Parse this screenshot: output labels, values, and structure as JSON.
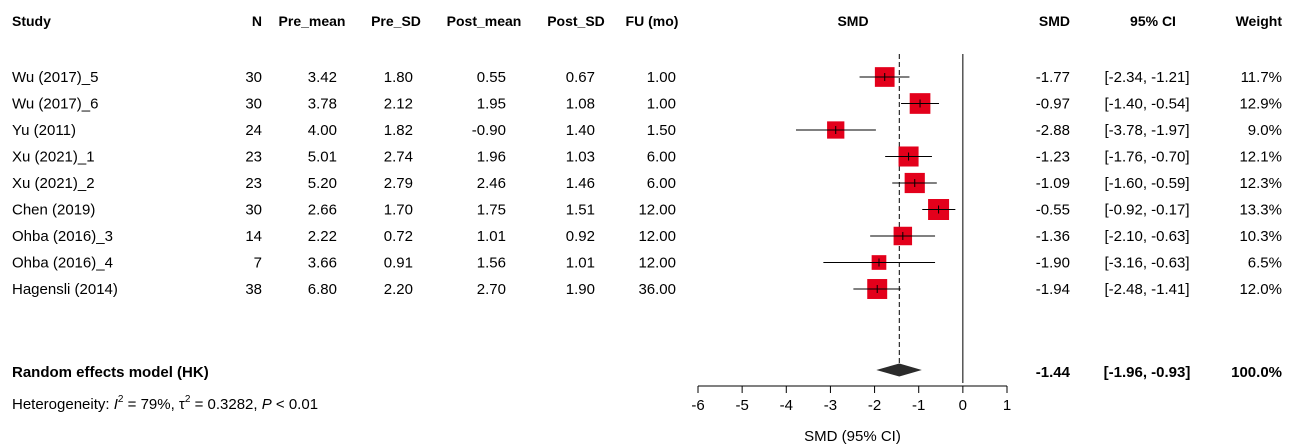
{
  "columns": {
    "study": "Study",
    "n": "N",
    "pre_mean": "Pre_mean",
    "pre_sd": "Pre_SD",
    "post_mean": "Post_mean",
    "post_sd": "Post_SD",
    "fu": "FU (mo)",
    "plot": "SMD",
    "smd": "SMD",
    "ci": "95% CI",
    "weight": "Weight"
  },
  "studies": [
    {
      "study": "Wu (2017)_5",
      "n": "30",
      "pre_mean": "3.42",
      "pre_sd": "1.80",
      "post_mean": "0.55",
      "post_sd": "0.67",
      "fu": "1.00",
      "smd_text": "-1.77",
      "ci_text": "[-2.34, -1.21]",
      "weight": "11.7%"
    },
    {
      "study": "Wu (2017)_6",
      "n": "30",
      "pre_mean": "3.78",
      "pre_sd": "2.12",
      "post_mean": "1.95",
      "post_sd": "1.08",
      "fu": "1.00",
      "smd_text": "-0.97",
      "ci_text": "[-1.40, -0.54]",
      "weight": "12.9%"
    },
    {
      "study": "Yu (2011)",
      "n": "24",
      "pre_mean": "4.00",
      "pre_sd": "1.82",
      "post_mean": "-0.90",
      "post_sd": "1.40",
      "fu": "1.50",
      "smd_text": "-2.88",
      "ci_text": "[-3.78, -1.97]",
      "weight": "9.0%"
    },
    {
      "study": "Xu (2021)_1",
      "n": "23",
      "pre_mean": "5.01",
      "pre_sd": "2.74",
      "post_mean": "1.96",
      "post_sd": "1.03",
      "fu": "6.00",
      "smd_text": "-1.23",
      "ci_text": "[-1.76, -0.70]",
      "weight": "12.1%"
    },
    {
      "study": "Xu (2021)_2",
      "n": "23",
      "pre_mean": "5.20",
      "pre_sd": "2.79",
      "post_mean": "2.46",
      "post_sd": "1.46",
      "fu": "6.00",
      "smd_text": "-1.09",
      "ci_text": "[-1.60, -0.59]",
      "weight": "12.3%"
    },
    {
      "study": "Chen (2019)",
      "n": "30",
      "pre_mean": "2.66",
      "pre_sd": "1.70",
      "post_mean": "1.75",
      "post_sd": "1.51",
      "fu": "12.00",
      "smd_text": "-0.55",
      "ci_text": "[-0.92, -0.17]",
      "weight": "13.3%"
    },
    {
      "study": "Ohba (2016)_3",
      "n": "14",
      "pre_mean": "2.22",
      "pre_sd": "0.72",
      "post_mean": "1.01",
      "post_sd": "0.92",
      "fu": "12.00",
      "smd_text": "-1.36",
      "ci_text": "[-2.10, -0.63]",
      "weight": "10.3%"
    },
    {
      "study": "Ohba (2016)_4",
      "n": "7",
      "pre_mean": "3.66",
      "pre_sd": "0.91",
      "post_mean": "1.56",
      "post_sd": "1.01",
      "fu": "12.00",
      "smd_text": "-1.90",
      "ci_text": "[-3.16, -0.63]",
      "weight": "6.5%"
    },
    {
      "study": "Hagensli (2014)",
      "n": "38",
      "pre_mean": "6.80",
      "pre_sd": "2.20",
      "post_mean": "2.70",
      "post_sd": "1.90",
      "fu": "36.00",
      "smd_text": "-1.94",
      "ci_text": "[-2.48, -1.41]",
      "weight": "12.0%"
    }
  ],
  "pooled": {
    "label": "Random effects model (HK)",
    "smd_text": "-1.44",
    "ci_text": "[-1.96, -0.93]",
    "weight": "100.0%"
  },
  "heterogeneity": {
    "prefix": "Heterogeneity: ",
    "i2_symbol": "I",
    "i2_value": " = 79%, ",
    "tau2_symbol": "τ",
    "tau2_value": " = 0.3282, ",
    "p_symbol": "P",
    "p_value": " < 0.01"
  },
  "colors": {
    "square": "#e3001b",
    "diamond": "#2b2b2b",
    "line": "#000000"
  },
  "chart_data": {
    "type": "forest",
    "xlabel": "SMD (95% CI)",
    "xlim": [
      -6,
      1
    ],
    "xticks": [
      -6,
      -5,
      -4,
      -3,
      -2,
      -1,
      0,
      1
    ],
    "reference_line": 0,
    "pooled_line": -1.44,
    "studies": [
      {
        "name": "Wu (2017)_5",
        "smd": -1.77,
        "lower": -2.34,
        "upper": -1.21,
        "weight": 11.7
      },
      {
        "name": "Wu (2017)_6",
        "smd": -0.97,
        "lower": -1.4,
        "upper": -0.54,
        "weight": 12.9
      },
      {
        "name": "Yu (2011)",
        "smd": -2.88,
        "lower": -3.78,
        "upper": -1.97,
        "weight": 9.0
      },
      {
        "name": "Xu (2021)_1",
        "smd": -1.23,
        "lower": -1.76,
        "upper": -0.7,
        "weight": 12.1
      },
      {
        "name": "Xu (2021)_2",
        "smd": -1.09,
        "lower": -1.6,
        "upper": -0.59,
        "weight": 12.3
      },
      {
        "name": "Chen (2019)",
        "smd": -0.55,
        "lower": -0.92,
        "upper": -0.17,
        "weight": 13.3
      },
      {
        "name": "Ohba (2016)_3",
        "smd": -1.36,
        "lower": -2.1,
        "upper": -0.63,
        "weight": 10.3
      },
      {
        "name": "Ohba (2016)_4",
        "smd": -1.9,
        "lower": -3.16,
        "upper": -0.63,
        "weight": 6.5
      },
      {
        "name": "Hagensli (2014)",
        "smd": -1.94,
        "lower": -2.48,
        "upper": -1.41,
        "weight": 12.0
      }
    ],
    "pooled": {
      "name": "Random effects model (HK)",
      "smd": -1.44,
      "lower": -1.96,
      "upper": -0.93,
      "weight": 100.0
    }
  }
}
